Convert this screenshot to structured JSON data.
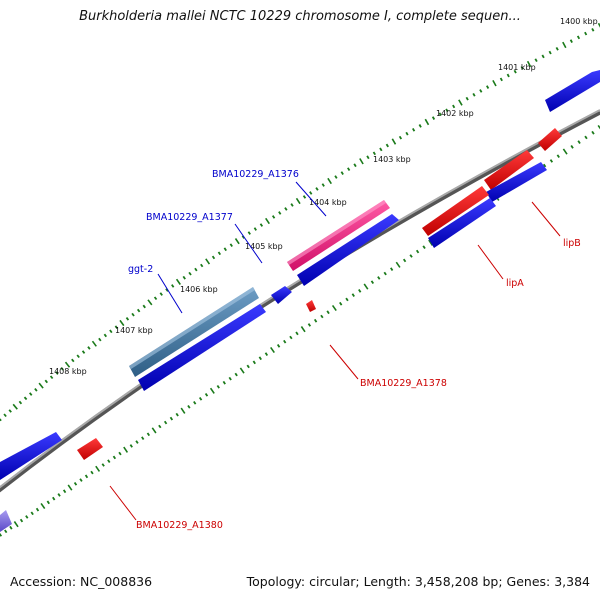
{
  "title": "Burkholderia mallei NCTC 10229 chromosome I, complete sequen...",
  "footer": {
    "accession": "Accession: NC_008836",
    "summary": "Topology: circular; Length: 3,458,208 bp; Genes: 3,384"
  },
  "scale": {
    "labels": [
      "1400 kbp",
      "1401 kbp",
      "1402 kbp",
      "1403 kbp",
      "1404 kbp",
      "1405 kbp",
      "1406 kbp",
      "1407 kbp",
      "1408 kbp"
    ]
  },
  "genes": [
    {
      "name": "BMA10229_A1376",
      "color": "#0000aa",
      "strand": "+"
    },
    {
      "name": "BMA10229_A1377",
      "color": "#0000aa",
      "strand": "+"
    },
    {
      "name": "ggt-2",
      "color": "#0000aa",
      "strand": "+"
    },
    {
      "name": "lipB",
      "color": "#cc0000",
      "strand": "-"
    },
    {
      "name": "lipA",
      "color": "#cc0000",
      "strand": "-"
    },
    {
      "name": "BMA10229_A1378",
      "color": "#cc0000",
      "strand": "-"
    },
    {
      "name": "BMA10229_A1380",
      "color": "#cc0000",
      "strand": "-"
    }
  ],
  "colors": {
    "backbone": "#888888",
    "tick": "#1a7a1a",
    "forward_cds": "#0000dd",
    "reverse_cds": "#ee0000",
    "highlight_pink": "#e8207a",
    "highlight_steel": "#4a7fa8",
    "faded_purple": "#7f70dd"
  }
}
